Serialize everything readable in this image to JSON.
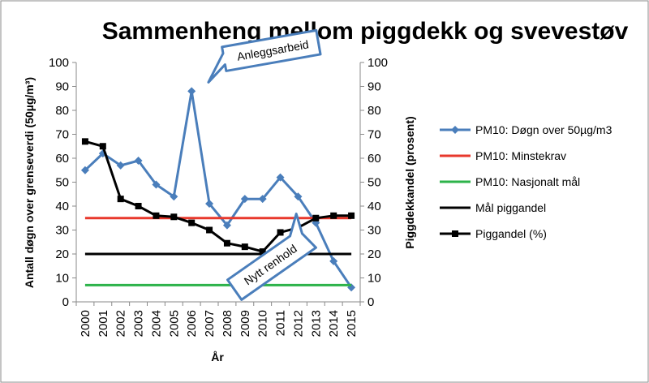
{
  "chart_data": {
    "type": "line",
    "title": "Sammenheng mellom piggdekk og svevestøv",
    "xlabel": "År",
    "ylabel_left": "Antall døgn over grenseverdi (50µg/m³)",
    "ylabel_right": "Piggdekkandel (prosent)",
    "categories": [
      "2000",
      "2001",
      "2002",
      "2003",
      "2004",
      "2005",
      "2006",
      "2007",
      "2008",
      "2009",
      "2010",
      "2011",
      "2012",
      "2013",
      "2014",
      "2015"
    ],
    "ylim": [
      0,
      100
    ],
    "yticks": [
      "0",
      "10",
      "20",
      "30",
      "40",
      "50",
      "60",
      "70",
      "80",
      "90",
      "100"
    ],
    "grid": false,
    "legend_position": "right",
    "series": [
      {
        "name": "PM10: Døgn over 50µg/m3",
        "color": "#4a7ebb",
        "marker": "diamond",
        "axis": "left",
        "values": [
          55,
          62,
          57,
          59,
          49,
          44,
          88,
          41,
          32,
          43,
          43,
          52,
          44,
          33,
          17,
          6
        ]
      },
      {
        "name": "PM10: Minstekrav",
        "color": "#e8382c",
        "marker": "none",
        "axis": "left",
        "values": [
          35,
          35,
          35,
          35,
          35,
          35,
          35,
          35,
          35,
          35,
          35,
          35,
          35,
          35,
          35,
          35
        ]
      },
      {
        "name": "PM10: Nasjonalt mål",
        "color": "#2db34a",
        "marker": "none",
        "axis": "left",
        "values": [
          7,
          7,
          7,
          7,
          7,
          7,
          7,
          7,
          7,
          7,
          7,
          7,
          7,
          7,
          7,
          7
        ]
      },
      {
        "name": "Mål piggandel",
        "color": "#000000",
        "marker": "none",
        "axis": "right",
        "values": [
          20,
          20,
          20,
          20,
          20,
          20,
          20,
          20,
          20,
          20,
          20,
          20,
          20,
          20,
          20,
          20
        ]
      },
      {
        "name": "Piggandel (%)",
        "color": "#000000",
        "marker": "square",
        "axis": "right",
        "values": [
          67,
          65,
          43,
          40,
          36,
          35.5,
          33,
          30,
          24.5,
          23,
          21,
          29,
          31,
          35,
          36,
          36
        ]
      }
    ],
    "annotations": [
      {
        "text": "Anleggsarbeid",
        "x": "2006",
        "y": 88
      },
      {
        "text": "Nytt renhold",
        "x": "2010",
        "y": 21
      }
    ]
  }
}
